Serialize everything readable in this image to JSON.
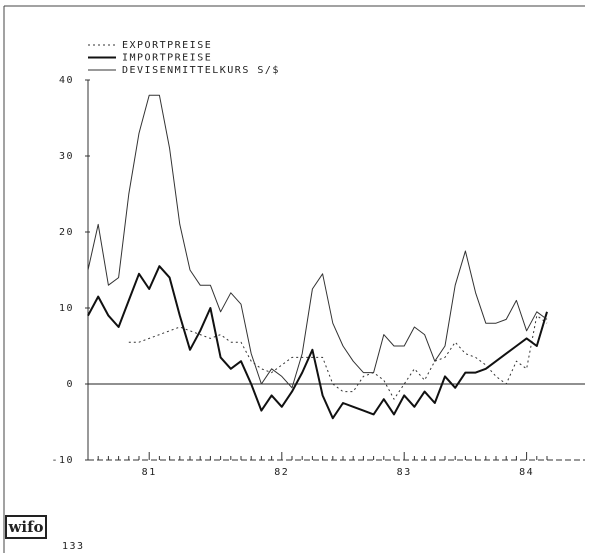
{
  "chart_data": {
    "type": "line",
    "categories": [
      null,
      null,
      null,
      null,
      null,
      null,
      "81",
      null,
      null,
      null,
      null,
      null,
      null,
      null,
      null,
      null,
      null,
      null,
      null,
      "82",
      null,
      null,
      null,
      null,
      null,
      null,
      null,
      null,
      null,
      null,
      null,
      "83",
      null,
      null,
      null,
      null,
      null,
      null,
      null,
      null,
      null,
      null,
      null,
      "84",
      null,
      null
    ],
    "series": [
      {
        "name": "EXPORTPREISE",
        "color": "#333",
        "style": "dotted",
        "width": 1,
        "values": [
          null,
          null,
          null,
          null,
          5.5,
          5.5,
          6,
          6.5,
          7,
          7.5,
          7,
          6.5,
          6,
          6.5,
          5.5,
          5.5,
          3,
          2,
          1.5,
          2.5,
          3.5,
          3.5,
          3.5,
          3.5,
          0,
          -1,
          -1,
          1,
          1.5,
          0.5,
          -2,
          0,
          2,
          0.5,
          3,
          3.5,
          5.5,
          4,
          3.5,
          2.5,
          1,
          0,
          3,
          2,
          9,
          8
        ]
      },
      {
        "name": "IMPORTPREISE",
        "color": "#111",
        "style": "solid",
        "width": 2,
        "values": [
          9,
          11.5,
          9,
          7.5,
          11,
          14.5,
          12.5,
          15.5,
          14,
          9,
          4.5,
          7,
          10,
          3.5,
          2,
          3,
          0,
          -3.5,
          -1.5,
          -3,
          -1,
          1.5,
          4.5,
          -1.5,
          -4.5,
          -2.5,
          -3,
          -3.5,
          -4,
          -2,
          -4,
          -1.5,
          -3,
          -1,
          -2.5,
          1,
          -0.5,
          1.5,
          1.5,
          2,
          3,
          4,
          5,
          6,
          5,
          9.5
        ]
      },
      {
        "name": "DEVISENMITTELKURS S/$",
        "color": "#333",
        "style": "solid",
        "width": 1,
        "values": [
          15,
          21,
          13,
          14,
          25,
          33,
          38,
          38,
          31,
          21,
          15,
          13,
          13,
          9.5,
          12,
          10.5,
          4,
          0,
          2,
          1,
          -0.5,
          4,
          12.5,
          14.5,
          8,
          5,
          3,
          1.5,
          1.5,
          6.5,
          5,
          5,
          7.5,
          6.5,
          3,
          5,
          13,
          17.5,
          12,
          8,
          8,
          8.5,
          11,
          7,
          9.5,
          8.5
        ]
      }
    ],
    "ylim": [
      -10,
      40
    ],
    "yticks": [
      -10,
      0,
      10,
      20,
      30,
      40
    ],
    "logo": "wifo",
    "page_number": "133"
  }
}
